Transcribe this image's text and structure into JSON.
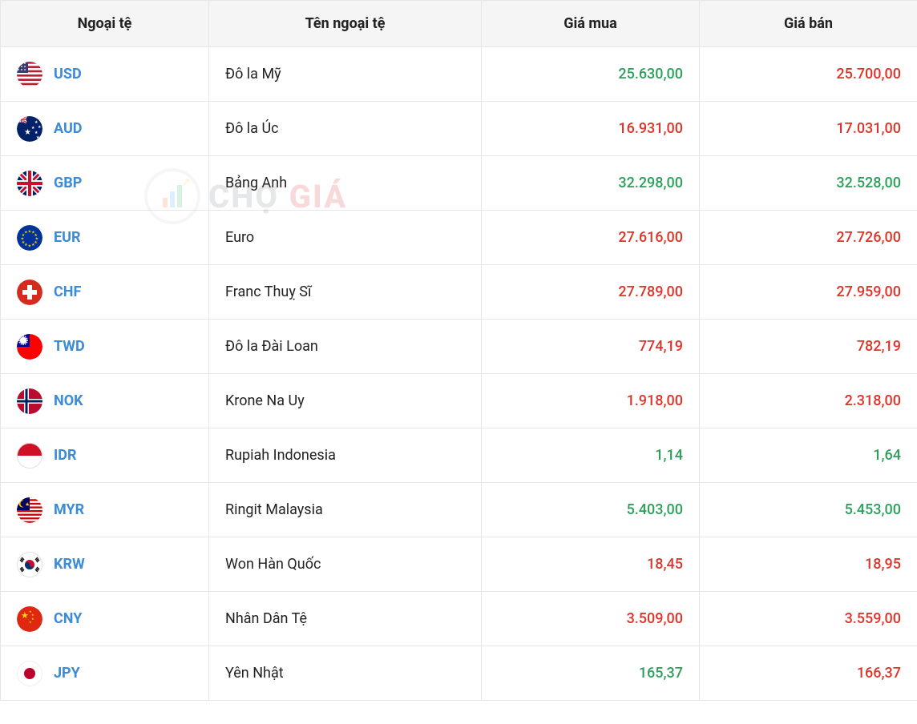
{
  "colors": {
    "code": "#3b8bd6",
    "up": "#2e9e5b",
    "down": "#d9352b",
    "text": "#222222",
    "border": "#e6e6e6",
    "header_bg": "#f5f5f5"
  },
  "watermark": {
    "text_left": "CHỢ",
    "text_right": "GIÁ"
  },
  "columns": {
    "flag": "Ngoại tệ",
    "name": "Tên ngoại tệ",
    "buy": "Giá mua",
    "sell": "Giá bán"
  },
  "rows": [
    {
      "code": "USD",
      "name": "Đô la Mỹ",
      "buy": "25.630,00",
      "buy_dir": "up",
      "sell": "25.700,00",
      "sell_dir": "down",
      "flag": "us"
    },
    {
      "code": "AUD",
      "name": "Đô la Úc",
      "buy": "16.931,00",
      "buy_dir": "down",
      "sell": "17.031,00",
      "sell_dir": "down",
      "flag": "au"
    },
    {
      "code": "GBP",
      "name": "Bảng Anh",
      "buy": "32.298,00",
      "buy_dir": "up",
      "sell": "32.528,00",
      "sell_dir": "up",
      "flag": "gb"
    },
    {
      "code": "EUR",
      "name": "Euro",
      "buy": "27.616,00",
      "buy_dir": "down",
      "sell": "27.726,00",
      "sell_dir": "down",
      "flag": "eu"
    },
    {
      "code": "CHF",
      "name": "Franc Thuỵ Sĩ",
      "buy": "27.789,00",
      "buy_dir": "down",
      "sell": "27.959,00",
      "sell_dir": "down",
      "flag": "ch"
    },
    {
      "code": "TWD",
      "name": "Đô la Đài Loan",
      "buy": "774,19",
      "buy_dir": "down",
      "sell": "782,19",
      "sell_dir": "down",
      "flag": "tw"
    },
    {
      "code": "NOK",
      "name": "Krone Na Uy",
      "buy": "1.918,00",
      "buy_dir": "down",
      "sell": "2.318,00",
      "sell_dir": "down",
      "flag": "no"
    },
    {
      "code": "IDR",
      "name": "Rupiah Indonesia",
      "buy": "1,14",
      "buy_dir": "up",
      "sell": "1,64",
      "sell_dir": "up",
      "flag": "id"
    },
    {
      "code": "MYR",
      "name": "Ringit Malaysia",
      "buy": "5.403,00",
      "buy_dir": "up",
      "sell": "5.453,00",
      "sell_dir": "up",
      "flag": "my"
    },
    {
      "code": "KRW",
      "name": "Won Hàn Quốc",
      "buy": "18,45",
      "buy_dir": "down",
      "sell": "18,95",
      "sell_dir": "down",
      "flag": "kr"
    },
    {
      "code": "CNY",
      "name": "Nhân Dân Tệ",
      "buy": "3.509,00",
      "buy_dir": "down",
      "sell": "3.559,00",
      "sell_dir": "down",
      "flag": "cn"
    },
    {
      "code": "JPY",
      "name": "Yên Nhật",
      "buy": "165,37",
      "buy_dir": "up",
      "sell": "166,37",
      "sell_dir": "down",
      "flag": "jp"
    }
  ]
}
